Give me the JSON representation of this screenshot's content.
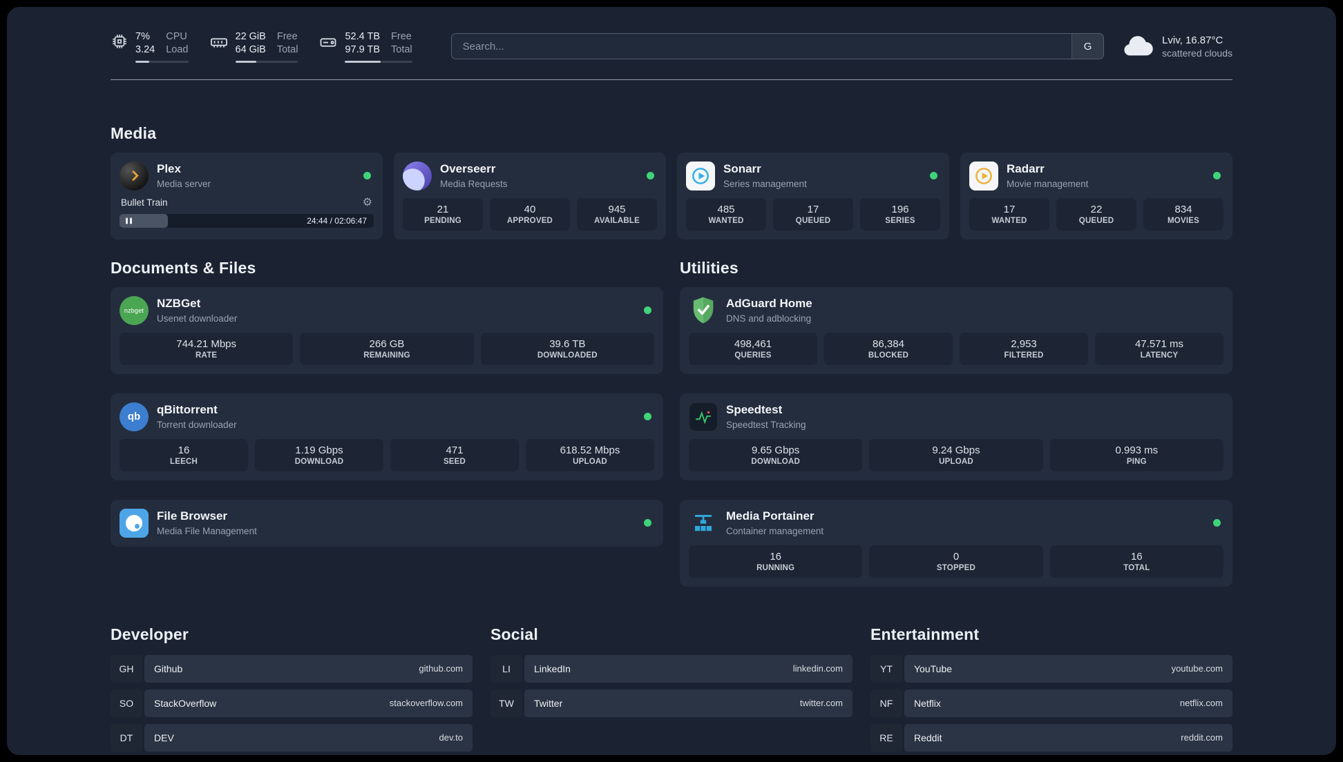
{
  "colors": {
    "status_online": "#3fd37a",
    "accent_plex": "#e8a23b",
    "accent_adguard": "#67b279"
  },
  "icons": {
    "gear": "⚙",
    "nzbget_logo_text": "nzbget",
    "qbittorrent_logo_text": "qb"
  },
  "topbar": {
    "cpu": {
      "value_top": "7%",
      "value_bottom": "3.24",
      "label_top": "CPU",
      "label_bottom": "Load",
      "bar_percent": 26
    },
    "memory": {
      "value_top": "22 GiB",
      "value_bottom": "64 GiB",
      "label_top": "Free",
      "label_bottom": "Total",
      "bar_percent": 34
    },
    "disk": {
      "value_top": "52.4 TB",
      "value_bottom": "97.9 TB",
      "label_top": "Free",
      "label_bottom": "Total",
      "bar_percent": 53
    },
    "search": {
      "placeholder": "Search...",
      "provider_label": "G"
    },
    "weather": {
      "location": "Lviv, 16.87°C",
      "condition": "scattered clouds"
    }
  },
  "media": {
    "title": "Media",
    "cards": [
      {
        "title": "Plex",
        "subtitle": "Media server",
        "status": "online",
        "player": {
          "track": "Bullet Train",
          "time": "24:44 / 02:06:47",
          "progress_percent": 19
        }
      },
      {
        "title": "Overseerr",
        "subtitle": "Media Requests",
        "status": "online",
        "stats": [
          {
            "value": "21",
            "label": "PENDING"
          },
          {
            "value": "40",
            "label": "APPROVED"
          },
          {
            "value": "945",
            "label": "AVAILABLE"
          }
        ]
      },
      {
        "title": "Sonarr",
        "subtitle": "Series management",
        "status": "online",
        "stats": [
          {
            "value": "485",
            "label": "WANTED"
          },
          {
            "value": "17",
            "label": "QUEUED"
          },
          {
            "value": "196",
            "label": "SERIES"
          }
        ]
      },
      {
        "title": "Radarr",
        "subtitle": "Movie management",
        "status": "online",
        "stats": [
          {
            "value": "17",
            "label": "WANTED"
          },
          {
            "value": "22",
            "label": "QUEUED"
          },
          {
            "value": "834",
            "label": "MOVIES"
          }
        ]
      }
    ]
  },
  "documents": {
    "title": "Documents & Files",
    "cards": [
      {
        "title": "NZBGet",
        "subtitle": "Usenet downloader",
        "status": "online",
        "stats": [
          {
            "value": "744.21 Mbps",
            "label": "RATE"
          },
          {
            "value": "266 GB",
            "label": "REMAINING"
          },
          {
            "value": "39.6 TB",
            "label": "DOWNLOADED"
          }
        ]
      },
      {
        "title": "qBittorrent",
        "subtitle": "Torrent downloader",
        "status": "online",
        "stats": [
          {
            "value": "16",
            "label": "LEECH"
          },
          {
            "value": "1.19 Gbps",
            "label": "DOWNLOAD"
          },
          {
            "value": "471",
            "label": "SEED"
          },
          {
            "value": "618.52 Mbps",
            "label": "UPLOAD"
          }
        ]
      },
      {
        "title": "File Browser",
        "subtitle": "Media File Management",
        "status": "online"
      }
    ]
  },
  "utilities": {
    "title": "Utilities",
    "cards": [
      {
        "title": "AdGuard Home",
        "subtitle": "DNS and adblocking",
        "stats": [
          {
            "value": "498,461",
            "label": "QUERIES"
          },
          {
            "value": "86,384",
            "label": "BLOCKED"
          },
          {
            "value": "2,953",
            "label": "FILTERED"
          },
          {
            "value": "47.571 ms",
            "label": "LATENCY"
          }
        ]
      },
      {
        "title": "Speedtest",
        "subtitle": "Speedtest Tracking",
        "stats": [
          {
            "value": "9.65 Gbps",
            "label": "DOWNLOAD"
          },
          {
            "value": "9.24 Gbps",
            "label": "UPLOAD"
          },
          {
            "value": "0.993 ms",
            "label": "PING"
          }
        ]
      },
      {
        "title": "Media Portainer",
        "subtitle": "Container management",
        "status": "online",
        "stats": [
          {
            "value": "16",
            "label": "RUNNING"
          },
          {
            "value": "0",
            "label": "STOPPED"
          },
          {
            "value": "16",
            "label": "TOTAL"
          }
        ]
      }
    ]
  },
  "bookmarks": {
    "groups": [
      {
        "title": "Developer",
        "items": [
          {
            "abbr": "GH",
            "name": "Github",
            "url": "github.com"
          },
          {
            "abbr": "SO",
            "name": "StackOverflow",
            "url": "stackoverflow.com"
          },
          {
            "abbr": "DT",
            "name": "DEV",
            "url": "dev.to"
          }
        ]
      },
      {
        "title": "Social",
        "items": [
          {
            "abbr": "LI",
            "name": "LinkedIn",
            "url": "linkedin.com"
          },
          {
            "abbr": "TW",
            "name": "Twitter",
            "url": "twitter.com"
          }
        ]
      },
      {
        "title": "Entertainment",
        "items": [
          {
            "abbr": "YT",
            "name": "YouTube",
            "url": "youtube.com"
          },
          {
            "abbr": "NF",
            "name": "Netflix",
            "url": "netflix.com"
          },
          {
            "abbr": "RE",
            "name": "Reddit",
            "url": "reddit.com"
          }
        ]
      }
    ]
  }
}
